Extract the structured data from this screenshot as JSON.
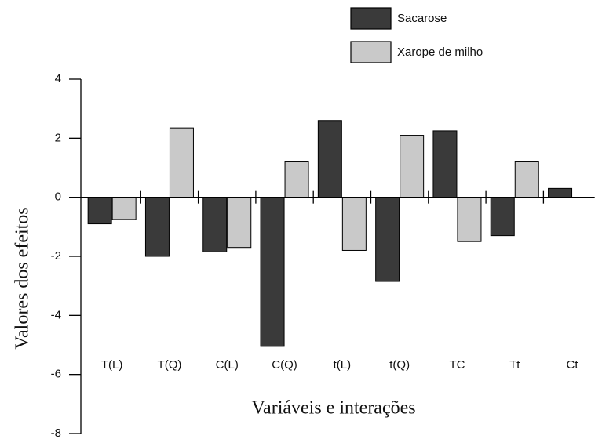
{
  "chart_data": {
    "type": "bar",
    "xlabel": "Variáveis e interações",
    "ylabel": "Valores dos efeitos",
    "categories": [
      "T(L)",
      "T(Q)",
      "C(L)",
      "C(Q)",
      "t(L)",
      "t(Q)",
      "TC",
      "Tt",
      "Ct"
    ],
    "series": [
      {
        "name": "Sacarose",
        "color": "#3a3a3a",
        "values": [
          -0.9,
          -2.0,
          -1.85,
          -5.05,
          2.6,
          -2.85,
          2.25,
          -1.3,
          0.3
        ]
      },
      {
        "name": "Xarope de milho",
        "color": "#c9c9c9",
        "values": [
          -0.75,
          2.35,
          -1.7,
          1.2,
          -1.8,
          2.1,
          -1.5,
          1.2,
          null
        ]
      }
    ],
    "ylim": [
      -8,
      4
    ],
    "yticks": [
      -8,
      -6,
      -4,
      -2,
      0,
      2,
      4
    ]
  }
}
